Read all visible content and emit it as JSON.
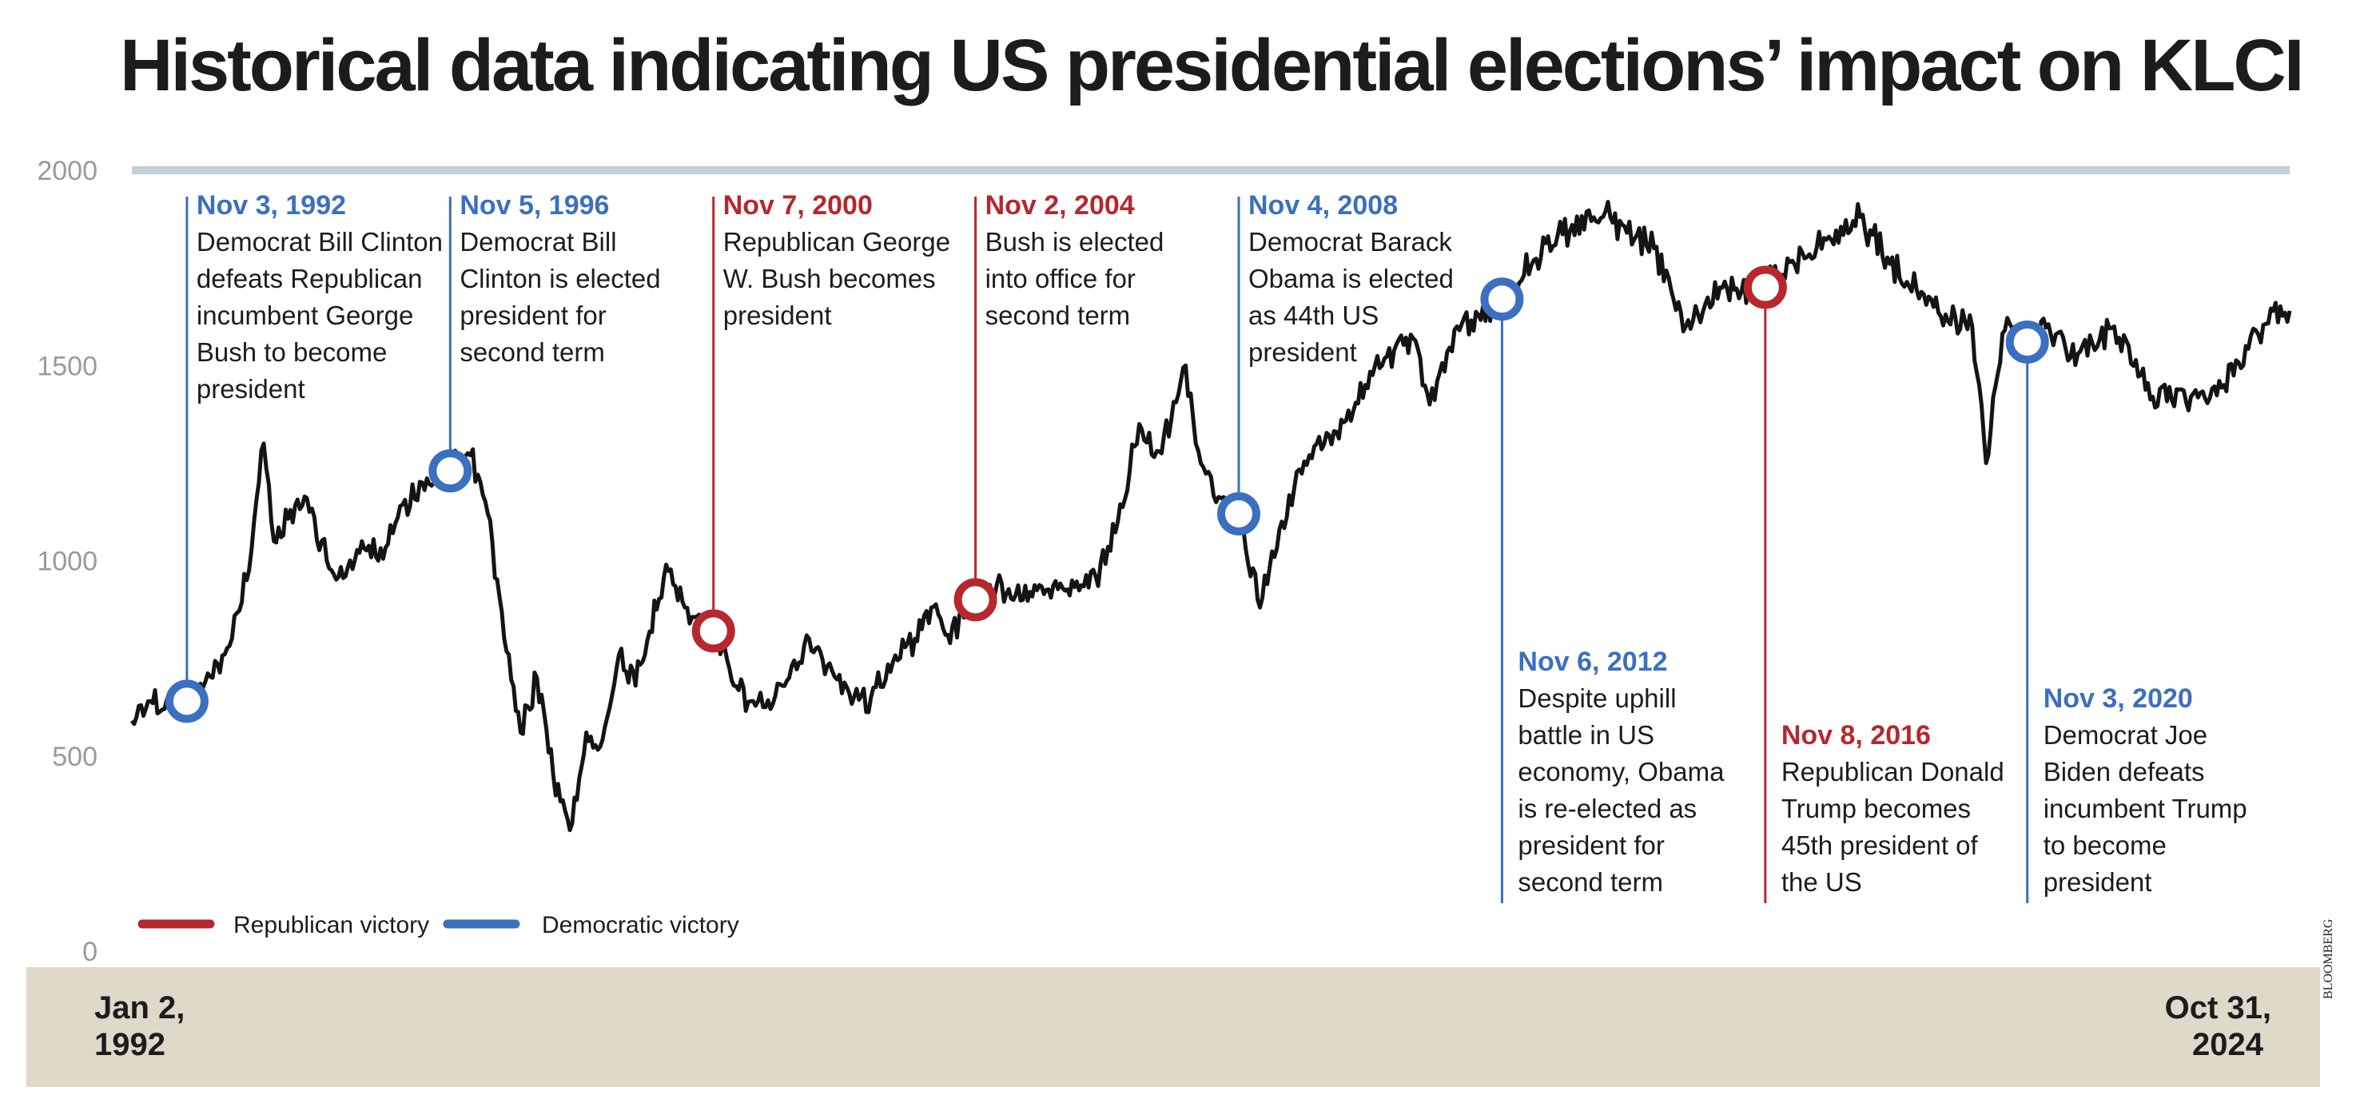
{
  "title": "Historical data indicating US presidential elections’ impact on KLCI",
  "source": "BLOOMBERG",
  "colors": {
    "republican": "#b5282e",
    "democratic": "#3b6fbf",
    "line": "#141414",
    "axis_band": "#dfd9ca",
    "top_rule": "#c3ced6"
  },
  "chart_data": {
    "type": "line",
    "title": "Historical data indicating US presidential elections’ impact on KLCI",
    "ylim": [
      0,
      2000
    ],
    "yticks": [
      0,
      500,
      1000,
      1500,
      2000
    ],
    "ytick_labels": [
      "0",
      "500",
      "1000",
      "1500",
      "2000"
    ],
    "x_range": [
      "1992-01-02",
      "2024-10-31"
    ],
    "x_start_label": [
      "Jan 2,",
      "1992"
    ],
    "x_end_label": [
      "Oct 31,",
      "2024"
    ],
    "grid": false,
    "legend_position": "bottom-left",
    "legend": [
      {
        "label": "Republican victory",
        "party": "republican"
      },
      {
        "label": "Democratic victory",
        "party": "democratic"
      }
    ],
    "series": [
      {
        "values": [
          [
            "1992-01-02",
            590
          ],
          [
            "1992-04-01",
            640
          ],
          [
            "1992-07-01",
            620
          ],
          [
            "1992-11-03",
            640
          ],
          [
            "1993-01-04",
            660
          ],
          [
            "1993-06-01",
            760
          ],
          [
            "1993-10-01",
            950
          ],
          [
            "1994-01-04",
            1300
          ],
          [
            "1994-03-01",
            1050
          ],
          [
            "1994-06-01",
            1130
          ],
          [
            "1994-09-01",
            1160
          ],
          [
            "1995-01-03",
            980
          ],
          [
            "1995-04-03",
            960
          ],
          [
            "1995-07-03",
            1050
          ],
          [
            "1995-10-02",
            1000
          ],
          [
            "1996-02-01",
            1140
          ],
          [
            "1996-06-03",
            1200
          ],
          [
            "1996-11-05",
            1230
          ],
          [
            "1997-02-25",
            1270
          ],
          [
            "1997-06-02",
            1120
          ],
          [
            "1997-09-01",
            800
          ],
          [
            "1997-12-01",
            560
          ],
          [
            "1998-03-02",
            700
          ],
          [
            "1998-06-01",
            450
          ],
          [
            "1998-09-01",
            310
          ],
          [
            "1998-12-01",
            560
          ],
          [
            "1999-03-01",
            540
          ],
          [
            "1999-06-01",
            760
          ],
          [
            "1999-09-01",
            680
          ],
          [
            "2000-02-18",
            990
          ],
          [
            "2000-06-01",
            880
          ],
          [
            "2000-11-07",
            820
          ],
          [
            "2001-03-01",
            680
          ],
          [
            "2001-06-01",
            640
          ],
          [
            "2001-09-20",
            620
          ],
          [
            "2002-01-02",
            700
          ],
          [
            "2002-04-23",
            800
          ],
          [
            "2002-08-01",
            730
          ],
          [
            "2002-12-02",
            660
          ],
          [
            "2003-04-01",
            650
          ],
          [
            "2003-08-01",
            740
          ],
          [
            "2003-12-01",
            800
          ],
          [
            "2004-03-01",
            880
          ],
          [
            "2004-06-01",
            810
          ],
          [
            "2004-11-02",
            900
          ],
          [
            "2005-03-01",
            940
          ],
          [
            "2005-09-01",
            920
          ],
          [
            "2006-03-01",
            930
          ],
          [
            "2006-09-01",
            960
          ],
          [
            "2007-01-02",
            1100
          ],
          [
            "2007-05-01",
            1350
          ],
          [
            "2007-08-20",
            1280
          ],
          [
            "2008-01-14",
            1500
          ],
          [
            "2008-03-10",
            1300
          ],
          [
            "2008-07-01",
            1150
          ],
          [
            "2008-11-04",
            1120
          ],
          [
            "2009-03-02",
            880
          ],
          [
            "2009-07-01",
            1100
          ],
          [
            "2009-12-01",
            1270
          ],
          [
            "2010-05-01",
            1330
          ],
          [
            "2010-12-01",
            1500
          ],
          [
            "2011-07-01",
            1570
          ],
          [
            "2011-10-01",
            1400
          ],
          [
            "2012-03-01",
            1600
          ],
          [
            "2012-11-06",
            1670
          ],
          [
            "2013-05-01",
            1770
          ],
          [
            "2013-12-01",
            1860
          ],
          [
            "2014-07-01",
            1880
          ],
          [
            "2014-10-01",
            1840
          ],
          [
            "2015-03-01",
            1800
          ],
          [
            "2015-08-24",
            1600
          ],
          [
            "2016-03-01",
            1700
          ],
          [
            "2016-11-08",
            1700
          ],
          [
            "2017-06-01",
            1790
          ],
          [
            "2018-04-20",
            1880
          ],
          [
            "2018-10-01",
            1760
          ],
          [
            "2019-06-01",
            1650
          ],
          [
            "2020-01-02",
            1600
          ],
          [
            "2020-03-19",
            1250
          ],
          [
            "2020-07-01",
            1590
          ],
          [
            "2020-11-03",
            1560
          ],
          [
            "2021-02-01",
            1620
          ],
          [
            "2021-07-01",
            1520
          ],
          [
            "2022-03-01",
            1600
          ],
          [
            "2022-10-01",
            1420
          ],
          [
            "2023-05-01",
            1420
          ],
          [
            "2023-11-01",
            1450
          ],
          [
            "2024-03-01",
            1550
          ],
          [
            "2024-08-01",
            1640
          ],
          [
            "2024-10-31",
            1640
          ]
        ]
      }
    ]
  },
  "events": [
    {
      "date_label": "Nov 3, 1992",
      "date": "1992-11-03",
      "value": 640,
      "party": "democratic",
      "lines": [
        "Democrat Bill Clinton",
        "defeats Republican",
        "incumbent George",
        "Bush to become",
        "president"
      ]
    },
    {
      "date_label": "Nov 5, 1996",
      "date": "1996-11-05",
      "value": 1230,
      "party": "democratic",
      "lines": [
        "Democrat Bill",
        "Clinton is elected",
        "president for",
        "second term"
      ]
    },
    {
      "date_label": "Nov 7, 2000",
      "date": "2000-11-07",
      "value": 820,
      "party": "republican",
      "lines": [
        "Republican George",
        "W. Bush becomes",
        "president"
      ]
    },
    {
      "date_label": "Nov 2, 2004",
      "date": "2004-11-02",
      "value": 900,
      "party": "republican",
      "lines": [
        "Bush is elected",
        "into office for",
        "second term"
      ]
    },
    {
      "date_label": "Nov 4, 2008",
      "date": "2008-11-04",
      "value": 1120,
      "party": "democratic",
      "lines": [
        "Democrat Barack",
        "Obama is elected",
        "as 44th US",
        "president"
      ]
    },
    {
      "date_label": "Nov 6, 2012",
      "date": "2012-11-06",
      "value": 1670,
      "party": "democratic",
      "lines": [
        "Despite uphill",
        "battle in US",
        "economy, Obama",
        "is re-elected as",
        "president for",
        "second term"
      ]
    },
    {
      "date_label": "Nov 8, 2016",
      "date": "2016-11-08",
      "value": 1700,
      "party": "republican",
      "lines": [
        "Republican Donald",
        "Trump becomes",
        "45th president of",
        "the US"
      ]
    },
    {
      "date_label": "Nov 3, 2020",
      "date": "2020-11-03",
      "value": 1560,
      "party": "democratic",
      "lines": [
        "Democrat Joe",
        "Biden defeats",
        "incumbent Trump",
        "to become",
        "president"
      ]
    }
  ]
}
